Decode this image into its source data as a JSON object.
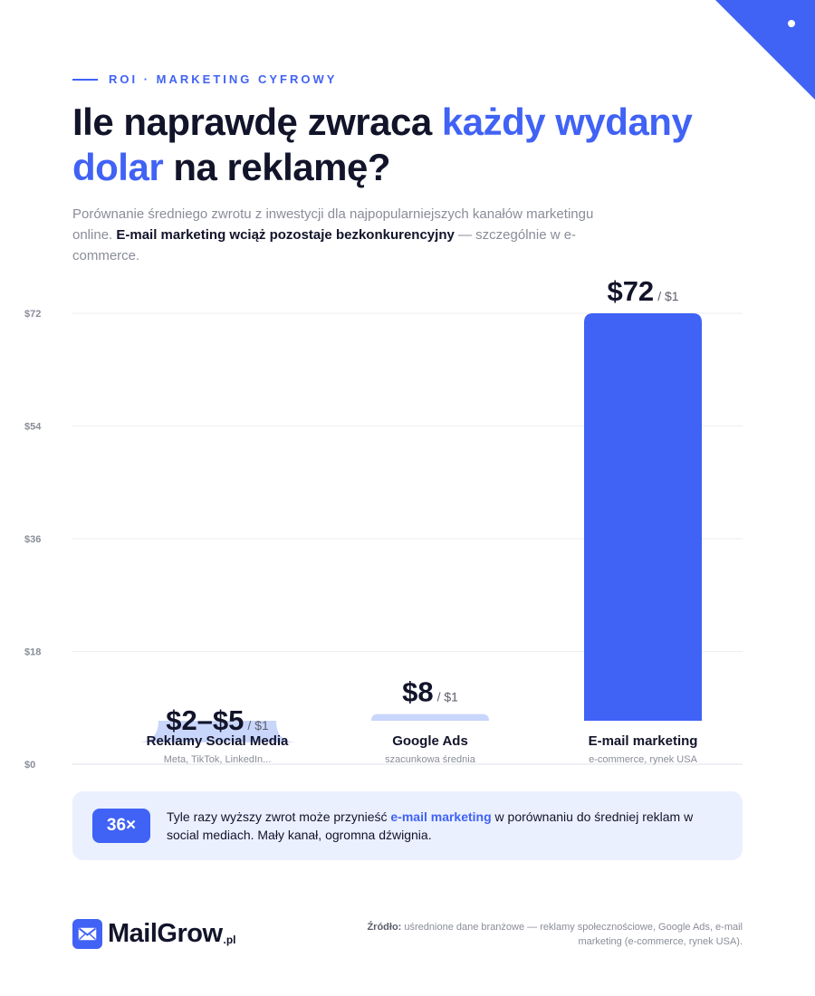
{
  "colors": {
    "accent": "#4062f5",
    "bar_light": "#c9d6fb",
    "dark": "#12142a",
    "muted": "#8a8d99",
    "callout_bg": "#eaf0fe"
  },
  "header": {
    "eyebrow": "ROI · MARKETING CYFROWY",
    "title_part1": "Ile naprawdę zwraca ",
    "title_highlight1": "każdy wydany dolar",
    "title_part2": " na reklamę?",
    "subtitle_part1": "Porównanie średniego zwrotu z inwestycji dla najpopularniejszych kanałów marketingu online. ",
    "subtitle_bold": "E-mail marketing wciąż pozostaje bezkonkurencyjny",
    "subtitle_part2": " — szczególnie w e-commerce."
  },
  "chart_data": {
    "type": "bar",
    "y_ticks": [
      "$0",
      "$18",
      "$36",
      "$54",
      "$72"
    ],
    "y_tick_values": [
      0,
      18,
      36,
      54,
      72
    ],
    "ylim": [
      0,
      72
    ],
    "grid": true,
    "categories": [
      "Reklamy Social Media",
      "Google Ads",
      "E-mail marketing"
    ],
    "category_notes": [
      "Meta, TikTok, LinkedIn...",
      "szacunkowa średnia",
      "e-commerce, rynek USA"
    ],
    "values": [
      3.5,
      8,
      72
    ],
    "value_labels": [
      "$2–$5",
      "$8",
      "$72"
    ],
    "value_unit": "/ $1",
    "bar_colors": [
      "#c9d6fb",
      "#c9d6fb",
      "#4062f5"
    ]
  },
  "callout": {
    "badge": "36×",
    "text_part1": "Tyle razy wyższy zwrot może przynieść ",
    "text_highlight": "e-mail marketing",
    "text_part2": " w porównaniu do średniej reklam w social mediach. Mały kanał, ogromna dźwignia."
  },
  "footer": {
    "logo_icon": "envelope-icon",
    "logo_name": "MailGrow",
    "logo_tld": ".pl",
    "source_label": "Źródło:",
    "source_text": " uśrednione dane branżowe — reklamy społecznościowe, Google Ads, e-mail marketing (e-commerce, rynek USA)."
  }
}
